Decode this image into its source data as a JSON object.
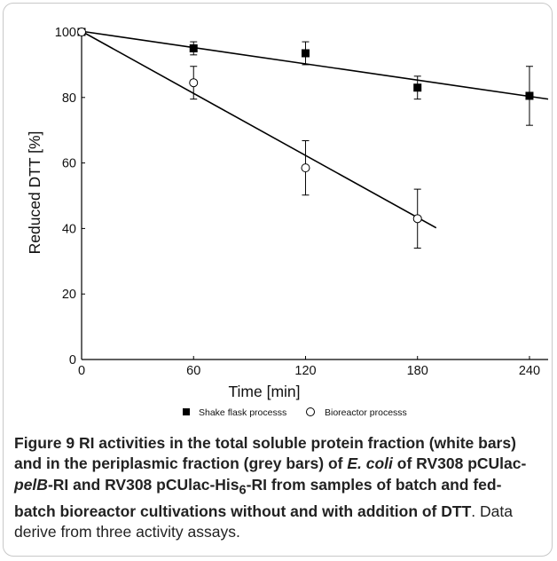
{
  "chart_data": {
    "type": "scatter",
    "title": "",
    "xlabel": "Time [min]",
    "ylabel": "Reduced DTT [%]",
    "xlim": [
      0,
      250
    ],
    "ylim": [
      0,
      100
    ],
    "xticks": [
      0,
      60,
      120,
      180,
      240
    ],
    "yticks": [
      0,
      20,
      40,
      60,
      80,
      100
    ],
    "grid": false,
    "legend_position": "bottom",
    "series": [
      {
        "name": "Shake flask processs",
        "marker": "filled-square",
        "x": [
          0,
          60,
          120,
          180,
          240
        ],
        "y": [
          100,
          95,
          93.5,
          83,
          80.5
        ],
        "error": [
          0,
          2,
          3.5,
          3.5,
          9
        ],
        "fit": {
          "x": [
            0,
            250
          ],
          "y": [
            100.2,
            79.5
          ]
        }
      },
      {
        "name": "Bioreactor processs",
        "marker": "open-circle",
        "x": [
          0,
          60,
          120,
          180
        ],
        "y": [
          100,
          84.5,
          58.5,
          43
        ],
        "error": [
          0,
          5,
          8.3,
          9
        ],
        "fit": {
          "x": [
            0,
            190
          ],
          "y": [
            100.2,
            40.2
          ]
        }
      }
    ]
  },
  "caption": {
    "prefix": "Figure 9",
    "s1": " RI activities in the total soluble protein fraction (white bars) and in the periplasmic fraction (grey bars) of ",
    "organism": "E. coli",
    "s2": " of RV308 pCUlac-",
    "gene": "pelB",
    "s3": "-RI and RV308 pCUlac-His",
    "sub": "6",
    "s4": "-RI from samples of batch and fed-batch bioreactor cultivations without and with addition of DTT",
    "s5": ". Data derive from three activity assays."
  }
}
